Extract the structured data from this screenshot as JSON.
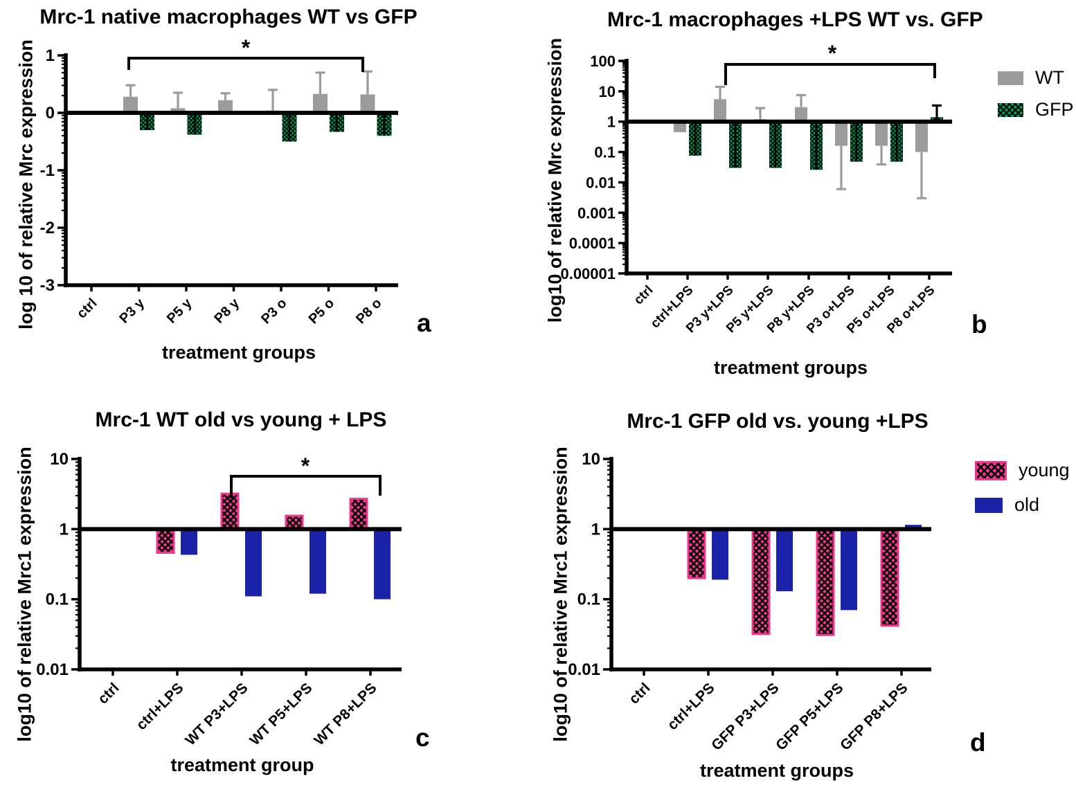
{
  "colors": {
    "wt_gray": "#9B9B9B",
    "gfp_green": "#009E5B",
    "young_pink": "#F0368C",
    "old_blue": "#1A22A8",
    "axis": "#000000"
  },
  "chart_data": [
    {
      "panel_letter": "a",
      "type": "bar",
      "title": "Mrc-1 native macrophages WT vs GFP",
      "ylabel": "log 10 of relative Mrc expression",
      "xlabel": "treatment groups",
      "yscale": "linear",
      "ylim": [
        -3,
        1
      ],
      "yticks": [
        "1",
        "0",
        "-1",
        "-2",
        "-3"
      ],
      "baseline": 0,
      "categories": [
        "ctrl",
        "P3 y",
        "P5 y",
        "P8 y",
        "P3 o",
        "P5 o",
        "P8 o"
      ],
      "series": [
        {
          "name": "WT",
          "style": "solid",
          "color_key": "wt_gray",
          "values": [
            null,
            0.28,
            0.08,
            0.22,
            0.04,
            0.33,
            0.32
          ],
          "err_up": [
            null,
            0.48,
            0.35,
            0.34,
            0.4,
            0.7,
            0.72
          ],
          "err_down": null
        },
        {
          "name": "GFP",
          "style": "checker",
          "color_key": "gfp_green",
          "values": [
            null,
            -0.3,
            -0.38,
            null,
            -0.5,
            -0.33,
            -0.4
          ],
          "err_up": null,
          "err_down": null
        }
      ],
      "significance": {
        "from": "P3 y",
        "to": "P8 o",
        "label": "*"
      }
    },
    {
      "panel_letter": "b",
      "type": "bar",
      "title": "Mrc-1 macrophages +LPS WT vs. GFP",
      "ylabel": "log10 of relative Mrc expression",
      "xlabel": "treatment groups",
      "yscale": "log",
      "ylim": [
        1e-05,
        100
      ],
      "yticks": [
        "100",
        "10",
        "1",
        "0.1",
        "0.01",
        "0.001",
        "0.0001",
        "0.00001"
      ],
      "baseline": 1,
      "categories": [
        "ctrl",
        "ctrl+LPS",
        "P3 y+LPS",
        "P5 y+LPS",
        "P8 y+LPS",
        "P3 o+LPS",
        "P5 o+LPS",
        "P8 o+LPS"
      ],
      "series": [
        {
          "name": "WT",
          "style": "solid",
          "color_key": "wt_gray",
          "values": [
            null,
            0.45,
            5.5,
            1.2,
            3.0,
            0.16,
            0.16,
            0.1
          ],
          "err_up": [
            null,
            null,
            14,
            2.8,
            7.5,
            null,
            null,
            null
          ],
          "err_down": [
            null,
            null,
            null,
            null,
            null,
            0.006,
            0.039,
            0.003
          ]
        },
        {
          "name": "GFP",
          "style": "checker",
          "color_key": "gfp_green",
          "values": [
            null,
            0.076,
            0.03,
            0.03,
            0.026,
            0.048,
            0.048,
            1.4
          ],
          "err_up": [
            null,
            null,
            null,
            null,
            null,
            null,
            null,
            3.4
          ],
          "err_down": null
        }
      ],
      "legend": [
        "WT",
        "GFP"
      ],
      "significance": {
        "from": "P3 y+LPS",
        "to": "P8 o+LPS",
        "label": "*"
      }
    },
    {
      "panel_letter": "c",
      "type": "bar",
      "title": "Mrc-1 WT old vs young + LPS",
      "ylabel": "log10 of relative Mrc1 expression",
      "xlabel": "treatment group",
      "yscale": "log",
      "ylim": [
        0.01,
        10
      ],
      "yticks": [
        "10",
        "1",
        "0.1",
        "0.01"
      ],
      "baseline": 1,
      "categories": [
        "ctrl",
        "ctrl+LPS",
        "WT P3+LPS",
        "WT P5+LPS",
        "WT P8+LPS"
      ],
      "series": [
        {
          "name": "young",
          "style": "checker",
          "color_key": "young_pink",
          "values": [
            null,
            0.46,
            3.2,
            1.55,
            2.7
          ],
          "err_up": null,
          "err_down": null
        },
        {
          "name": "old",
          "style": "solid",
          "color_key": "old_blue",
          "values": [
            null,
            0.43,
            0.11,
            0.12,
            0.1
          ],
          "err_up": null,
          "err_down": null
        }
      ],
      "significance": {
        "from": "WT P3+LPS",
        "to": "WT P8+LPS",
        "label": "*"
      }
    },
    {
      "panel_letter": "d",
      "type": "bar",
      "title": "Mrc-1 GFP old vs. young +LPS",
      "ylabel": "log10 of relative Mrc1 expression",
      "xlabel": "treatment groups",
      "yscale": "log",
      "ylim": [
        0.01,
        10
      ],
      "yticks": [
        "10",
        "1",
        "0.1",
        "0.01"
      ],
      "baseline": 1,
      "categories": [
        "ctrl",
        "ctrl+LPS",
        "GFP P3+LPS",
        "GFP P5+LPS",
        "GFP P8+LPS"
      ],
      "series": [
        {
          "name": "young",
          "style": "checker",
          "color_key": "young_pink",
          "values": [
            null,
            0.2,
            0.032,
            0.031,
            0.042
          ],
          "err_up": null,
          "err_down": null
        },
        {
          "name": "old",
          "style": "solid",
          "color_key": "old_blue",
          "values": [
            null,
            0.19,
            0.13,
            0.07,
            1.15
          ],
          "err_up": null,
          "err_down": null
        }
      ],
      "legend": [
        "young",
        "old"
      ]
    }
  ]
}
